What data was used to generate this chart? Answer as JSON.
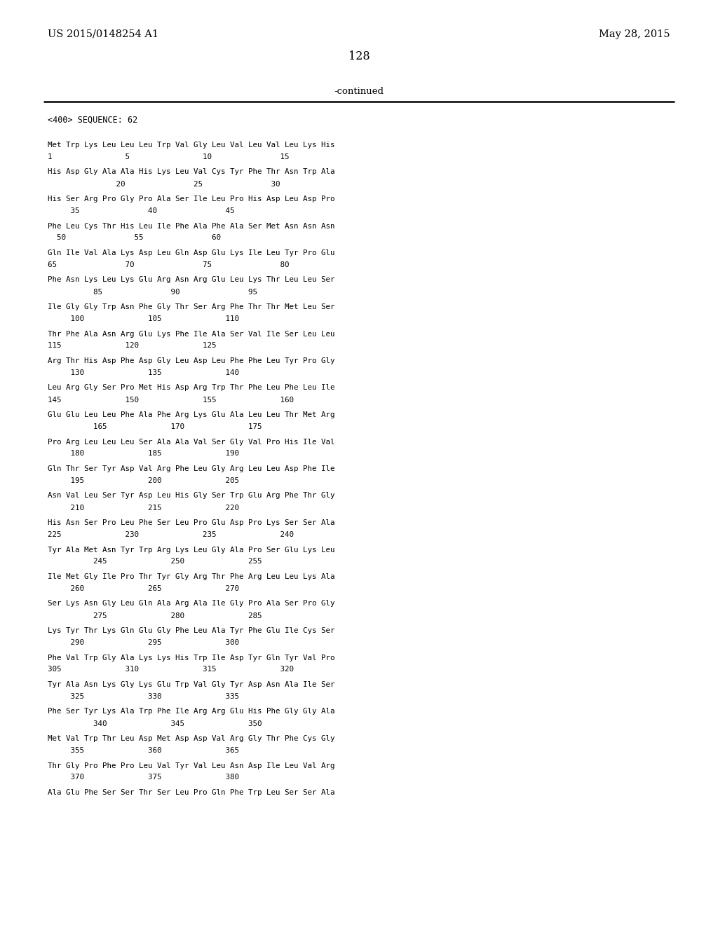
{
  "header_left": "US 2015/0148254 A1",
  "header_right": "May 28, 2015",
  "page_number": "128",
  "continued_text": "-continued",
  "sequence_label": "<400> SEQUENCE: 62",
  "background_color": "#ffffff",
  "lines_data": [
    [
      "Met Trp Lys Leu Leu Leu Trp Val Gly Leu Val Leu Val Leu Lys His",
      "1                5                10               15"
    ],
    [
      "His Asp Gly Ala Ala His Lys Leu Val Cys Tyr Phe Thr Asn Trp Ala",
      "               20               25               30"
    ],
    [
      "His Ser Arg Pro Gly Pro Ala Ser Ile Leu Pro His Asp Leu Asp Pro",
      "     35               40               45"
    ],
    [
      "Phe Leu Cys Thr His Leu Ile Phe Ala Phe Ala Ser Met Asn Asn Asn",
      "  50               55               60"
    ],
    [
      "Gln Ile Val Ala Lys Asp Leu Gln Asp Glu Lys Ile Leu Tyr Pro Glu",
      "65               70               75               80"
    ],
    [
      "Phe Asn Lys Leu Lys Glu Arg Asn Arg Glu Leu Lys Thr Leu Leu Ser",
      "          85               90               95"
    ],
    [
      "Ile Gly Gly Trp Asn Phe Gly Thr Ser Arg Phe Thr Thr Met Leu Ser",
      "     100              105              110"
    ],
    [
      "Thr Phe Ala Asn Arg Glu Lys Phe Ile Ala Ser Val Ile Ser Leu Leu",
      "115              120              125"
    ],
    [
      "Arg Thr His Asp Phe Asp Gly Leu Asp Leu Phe Phe Leu Tyr Pro Gly",
      "     130              135              140"
    ],
    [
      "Leu Arg Gly Ser Pro Met His Asp Arg Trp Thr Phe Leu Phe Leu Ile",
      "145              150              155              160"
    ],
    [
      "Glu Glu Leu Leu Phe Ala Phe Arg Lys Glu Ala Leu Leu Thr Met Arg",
      "          165              170              175"
    ],
    [
      "Pro Arg Leu Leu Leu Ser Ala Ala Val Ser Gly Val Pro His Ile Val",
      "     180              185              190"
    ],
    [
      "Gln Thr Ser Tyr Asp Val Arg Phe Leu Gly Arg Leu Leu Asp Phe Ile",
      "     195              200              205"
    ],
    [
      "Asn Val Leu Ser Tyr Asp Leu His Gly Ser Trp Glu Arg Phe Thr Gly",
      "     210              215              220"
    ],
    [
      "His Asn Ser Pro Leu Phe Ser Leu Pro Glu Asp Pro Lys Ser Ser Ala",
      "225              230              235              240"
    ],
    [
      "Tyr Ala Met Asn Tyr Trp Arg Lys Leu Gly Ala Pro Ser Glu Lys Leu",
      "          245              250              255"
    ],
    [
      "Ile Met Gly Ile Pro Thr Tyr Gly Arg Thr Phe Arg Leu Leu Lys Ala",
      "     260              265              270"
    ],
    [
      "Ser Lys Asn Gly Leu Gln Ala Arg Ala Ile Gly Pro Ala Ser Pro Gly",
      "          275              280              285"
    ],
    [
      "Lys Tyr Thr Lys Gln Glu Gly Phe Leu Ala Tyr Phe Glu Ile Cys Ser",
      "     290              295              300"
    ],
    [
      "Phe Val Trp Gly Ala Lys Lys His Trp Ile Asp Tyr Gln Tyr Val Pro",
      "305              310              315              320"
    ],
    [
      "Tyr Ala Asn Lys Gly Lys Glu Trp Val Gly Tyr Asp Asn Ala Ile Ser",
      "     325              330              335"
    ],
    [
      "Phe Ser Tyr Lys Ala Trp Phe Ile Arg Arg Glu His Phe Gly Gly Ala",
      "          340              345              350"
    ],
    [
      "Met Val Trp Thr Leu Asp Met Asp Asp Val Arg Gly Thr Phe Cys Gly",
      "     355              360              365"
    ],
    [
      "Thr Gly Pro Phe Pro Leu Val Tyr Val Leu Asn Asp Ile Leu Val Arg",
      "     370              375              380"
    ],
    [
      "Ala Glu Phe Ser Ser Thr Ser Leu Pro Gln Phe Trp Leu Ser Ser Ala",
      ""
    ]
  ]
}
